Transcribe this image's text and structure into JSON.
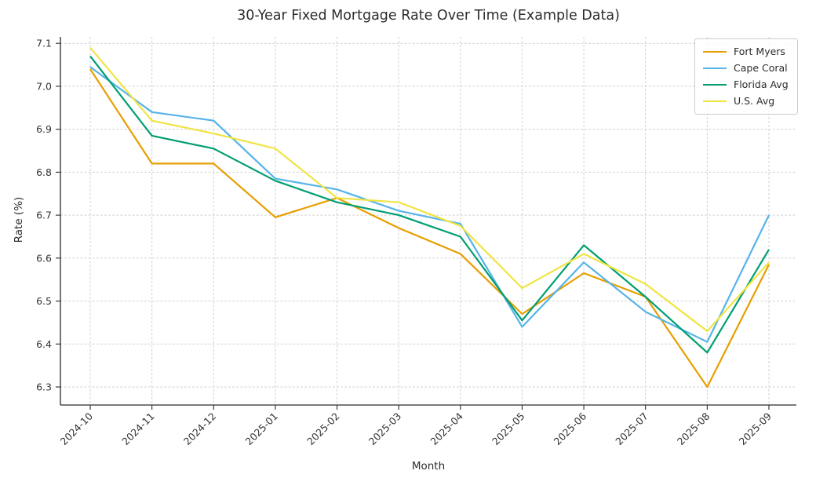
{
  "chart_data": {
    "type": "line",
    "title": "30-Year Fixed Mortgage Rate Over Time (Example Data)",
    "xlabel": "Month",
    "ylabel": "Rate (%)",
    "x": [
      "2024-10",
      "2024-11",
      "2024-12",
      "2025-01",
      "2025-02",
      "2025-03",
      "2025-04",
      "2025-05",
      "2025-06",
      "2025-07",
      "2025-08",
      "2025-09"
    ],
    "series": [
      {
        "name": "Fort Myers",
        "color": "#E69F00",
        "values": [
          7.04,
          6.82,
          6.82,
          6.695,
          6.74,
          6.67,
          6.61,
          6.47,
          6.565,
          6.51,
          6.3,
          6.585
        ]
      },
      {
        "name": "Cape Coral",
        "color": "#56B4E9",
        "values": [
          7.045,
          6.94,
          6.92,
          6.785,
          6.76,
          6.71,
          6.68,
          6.44,
          6.59,
          6.475,
          6.405,
          6.7
        ]
      },
      {
        "name": "Florida Avg",
        "color": "#009E73",
        "values": [
          7.07,
          6.885,
          6.855,
          6.78,
          6.73,
          6.7,
          6.65,
          6.455,
          6.63,
          6.51,
          6.38,
          6.62
        ]
      },
      {
        "name": "U.S. Avg",
        "color": "#F0E442",
        "values": [
          7.09,
          6.92,
          6.89,
          6.855,
          6.74,
          6.73,
          6.675,
          6.53,
          6.61,
          6.54,
          6.43,
          6.59
        ]
      }
    ],
    "yticks": [
      6.3,
      6.4,
      6.5,
      6.6,
      6.7,
      6.8,
      6.9,
      7.0,
      7.1
    ],
    "ylim": [
      6.258,
      7.115
    ],
    "grid": true,
    "grid_style": "dashed",
    "legend_position": "upper right"
  },
  "style": {
    "background": "#ffffff",
    "grid_color": "#cfcfcf",
    "spine_color": "#2b2b2b",
    "tick_label_color": "#333333",
    "legend_border_color": "#cccccc"
  }
}
